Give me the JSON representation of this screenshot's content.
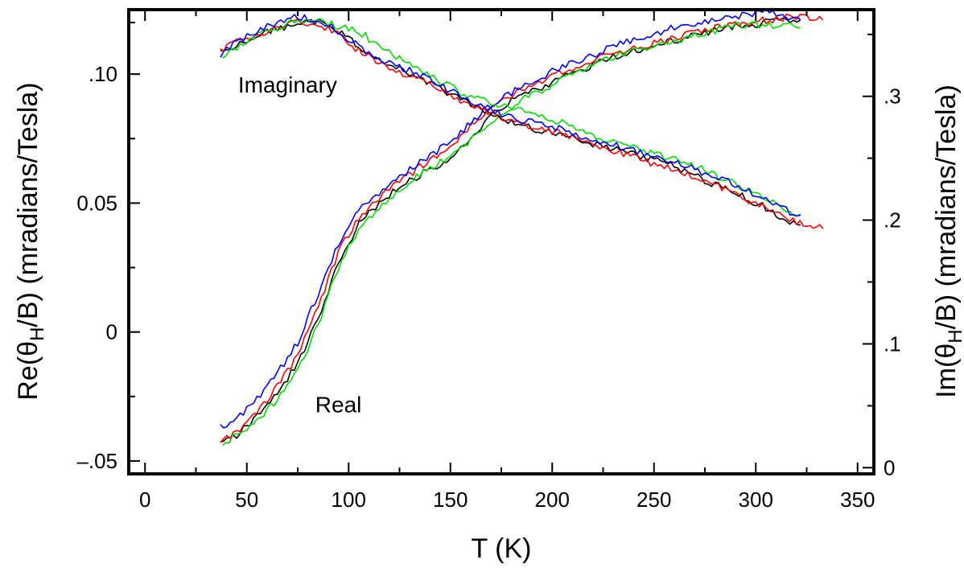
{
  "chart_data": {
    "type": "line",
    "xlabel": "T  (K)",
    "ylabel_left": "Re(θH/B)  (mradians/Tesla)",
    "ylabel_right": "Im(θH/B)  (mradians/Tesla)",
    "xlim": [
      -8,
      358
    ],
    "ylim_left": [
      -0.055,
      0.125
    ],
    "ylim_right": [
      -0.005,
      0.37
    ],
    "x_ticks": [
      0,
      50,
      100,
      150,
      200,
      250,
      300,
      350
    ],
    "x_tick_labels": [
      "0",
      "50",
      "100",
      "150",
      "200",
      "250",
      "300",
      "350"
    ],
    "y_left_ticks": [
      0.1,
      0.05,
      0,
      -0.05
    ],
    "y_left_tick_labels": [
      ".10",
      "0.05",
      "0",
      "–.05"
    ],
    "y_right_ticks": [
      0.3,
      0.2,
      0.1,
      0
    ],
    "y_right_tick_labels": [
      ".3",
      ".2",
      ".1",
      "0"
    ],
    "annotations": [
      {
        "text": "Imaginary",
        "x": 70,
        "y": 0.096
      },
      {
        "text": "Real",
        "x": 95,
        "y": -0.028
      }
    ],
    "grid": false,
    "legend": "none",
    "series": [
      {
        "group": "Real",
        "axis": "left",
        "color": "#000000",
        "x": [
          37,
          45,
          55,
          65,
          75,
          85,
          95,
          105,
          115,
          125,
          135,
          145,
          155,
          165,
          175,
          185,
          195,
          205,
          215,
          225,
          235,
          245,
          255,
          265,
          275,
          285,
          295,
          305,
          315,
          322
        ],
        "y": [
          -0.044,
          -0.04,
          -0.033,
          -0.024,
          -0.012,
          0.005,
          0.027,
          0.042,
          0.05,
          0.056,
          0.061,
          0.065,
          0.071,
          0.08,
          0.087,
          0.092,
          0.095,
          0.099,
          0.102,
          0.105,
          0.108,
          0.11,
          0.112,
          0.114,
          0.116,
          0.118,
          0.119,
          0.12,
          0.121,
          0.121
        ]
      },
      {
        "group": "Real",
        "axis": "left",
        "color": "#ff0000",
        "x": [
          37,
          45,
          55,
          65,
          75,
          85,
          95,
          105,
          115,
          125,
          135,
          145,
          155,
          165,
          175,
          185,
          195,
          205,
          215,
          225,
          235,
          245,
          255,
          265,
          275,
          285,
          295,
          305,
          315,
          325,
          333
        ],
        "y": [
          -0.043,
          -0.039,
          -0.031,
          -0.021,
          -0.009,
          0.01,
          0.031,
          0.044,
          0.052,
          0.058,
          0.064,
          0.069,
          0.076,
          0.084,
          0.09,
          0.094,
          0.097,
          0.101,
          0.104,
          0.107,
          0.109,
          0.111,
          0.113,
          0.115,
          0.117,
          0.119,
          0.12,
          0.121,
          0.122,
          0.122,
          0.121
        ]
      },
      {
        "group": "Real",
        "axis": "left",
        "color": "#00dd00",
        "x": [
          38,
          45,
          55,
          65,
          75,
          85,
          95,
          105,
          115,
          125,
          135,
          145,
          155,
          165,
          175,
          185,
          195,
          205,
          215,
          225,
          235,
          245,
          255,
          265,
          275,
          285,
          295,
          305,
          315,
          322
        ],
        "y": [
          -0.043,
          -0.04,
          -0.034,
          -0.026,
          -0.015,
          0.003,
          0.025,
          0.04,
          0.048,
          0.055,
          0.061,
          0.066,
          0.071,
          0.078,
          0.085,
          0.09,
          0.094,
          0.098,
          0.102,
          0.105,
          0.108,
          0.11,
          0.112,
          0.114,
          0.116,
          0.118,
          0.119,
          0.119,
          0.119,
          0.118
        ]
      },
      {
        "group": "Real",
        "axis": "left",
        "color": "#0000ff",
        "x": [
          37,
          45,
          55,
          65,
          75,
          85,
          95,
          105,
          115,
          125,
          135,
          145,
          155,
          165,
          175,
          185,
          195,
          205,
          215,
          225,
          235,
          245,
          255,
          265,
          275,
          285,
          295,
          305,
          315,
          322
        ],
        "y": [
          -0.037,
          -0.034,
          -0.026,
          -0.016,
          -0.004,
          0.015,
          0.034,
          0.047,
          0.054,
          0.06,
          0.066,
          0.071,
          0.077,
          0.085,
          0.091,
          0.095,
          0.099,
          0.103,
          0.106,
          0.109,
          0.112,
          0.114,
          0.117,
          0.119,
          0.12,
          0.122,
          0.123,
          0.124,
          0.122,
          0.121
        ]
      },
      {
        "group": "Imaginary",
        "axis": "right",
        "color": "#000000",
        "x": [
          37,
          45,
          55,
          65,
          75,
          85,
          95,
          105,
          115,
          125,
          135,
          145,
          155,
          165,
          175,
          185,
          195,
          205,
          215,
          225,
          235,
          245,
          255,
          265,
          275,
          285,
          295,
          305,
          315,
          322
        ],
        "y": [
          0.335,
          0.342,
          0.35,
          0.355,
          0.359,
          0.36,
          0.352,
          0.34,
          0.33,
          0.322,
          0.314,
          0.306,
          0.298,
          0.29,
          0.282,
          0.276,
          0.272,
          0.268,
          0.264,
          0.259,
          0.255,
          0.251,
          0.246,
          0.24,
          0.232,
          0.225,
          0.218,
          0.21,
          0.2,
          0.196
        ]
      },
      {
        "group": "Imaginary",
        "axis": "right",
        "color": "#ff0000",
        "x": [
          37,
          45,
          55,
          65,
          75,
          85,
          95,
          105,
          115,
          125,
          135,
          145,
          155,
          165,
          175,
          185,
          195,
          205,
          215,
          225,
          235,
          245,
          255,
          265,
          275,
          285,
          295,
          305,
          315,
          325,
          333
        ],
        "y": [
          0.336,
          0.344,
          0.35,
          0.356,
          0.36,
          0.359,
          0.35,
          0.337,
          0.327,
          0.32,
          0.312,
          0.304,
          0.297,
          0.29,
          0.283,
          0.278,
          0.274,
          0.27,
          0.264,
          0.258,
          0.253,
          0.248,
          0.243,
          0.238,
          0.232,
          0.225,
          0.217,
          0.21,
          0.202,
          0.195,
          0.193
        ]
      },
      {
        "group": "Imaginary",
        "axis": "right",
        "color": "#00dd00",
        "x": [
          38,
          45,
          55,
          65,
          75,
          85,
          95,
          105,
          115,
          125,
          135,
          145,
          155,
          165,
          175,
          185,
          195,
          205,
          215,
          225,
          235,
          245,
          255,
          265,
          275,
          285,
          295,
          305,
          315,
          322
        ],
        "y": [
          0.332,
          0.34,
          0.35,
          0.356,
          0.361,
          0.362,
          0.356,
          0.353,
          0.34,
          0.33,
          0.322,
          0.312,
          0.303,
          0.297,
          0.293,
          0.288,
          0.283,
          0.279,
          0.272,
          0.266,
          0.26,
          0.256,
          0.251,
          0.246,
          0.24,
          0.233,
          0.225,
          0.217,
          0.208,
          0.205
        ]
      },
      {
        "group": "Imaginary",
        "axis": "right",
        "color": "#0000ff",
        "x": [
          37,
          45,
          55,
          65,
          75,
          85,
          95,
          105,
          115,
          125,
          135,
          145,
          155,
          165,
          175,
          185,
          195,
          205,
          215,
          225,
          235,
          245,
          255,
          265,
          275,
          285,
          295,
          305,
          315,
          322
        ],
        "y": [
          0.334,
          0.344,
          0.352,
          0.36,
          0.364,
          0.362,
          0.352,
          0.34,
          0.331,
          0.324,
          0.317,
          0.309,
          0.3,
          0.292,
          0.286,
          0.281,
          0.277,
          0.273,
          0.268,
          0.263,
          0.258,
          0.254,
          0.25,
          0.244,
          0.238,
          0.232,
          0.225,
          0.217,
          0.208,
          0.204
        ]
      }
    ]
  }
}
